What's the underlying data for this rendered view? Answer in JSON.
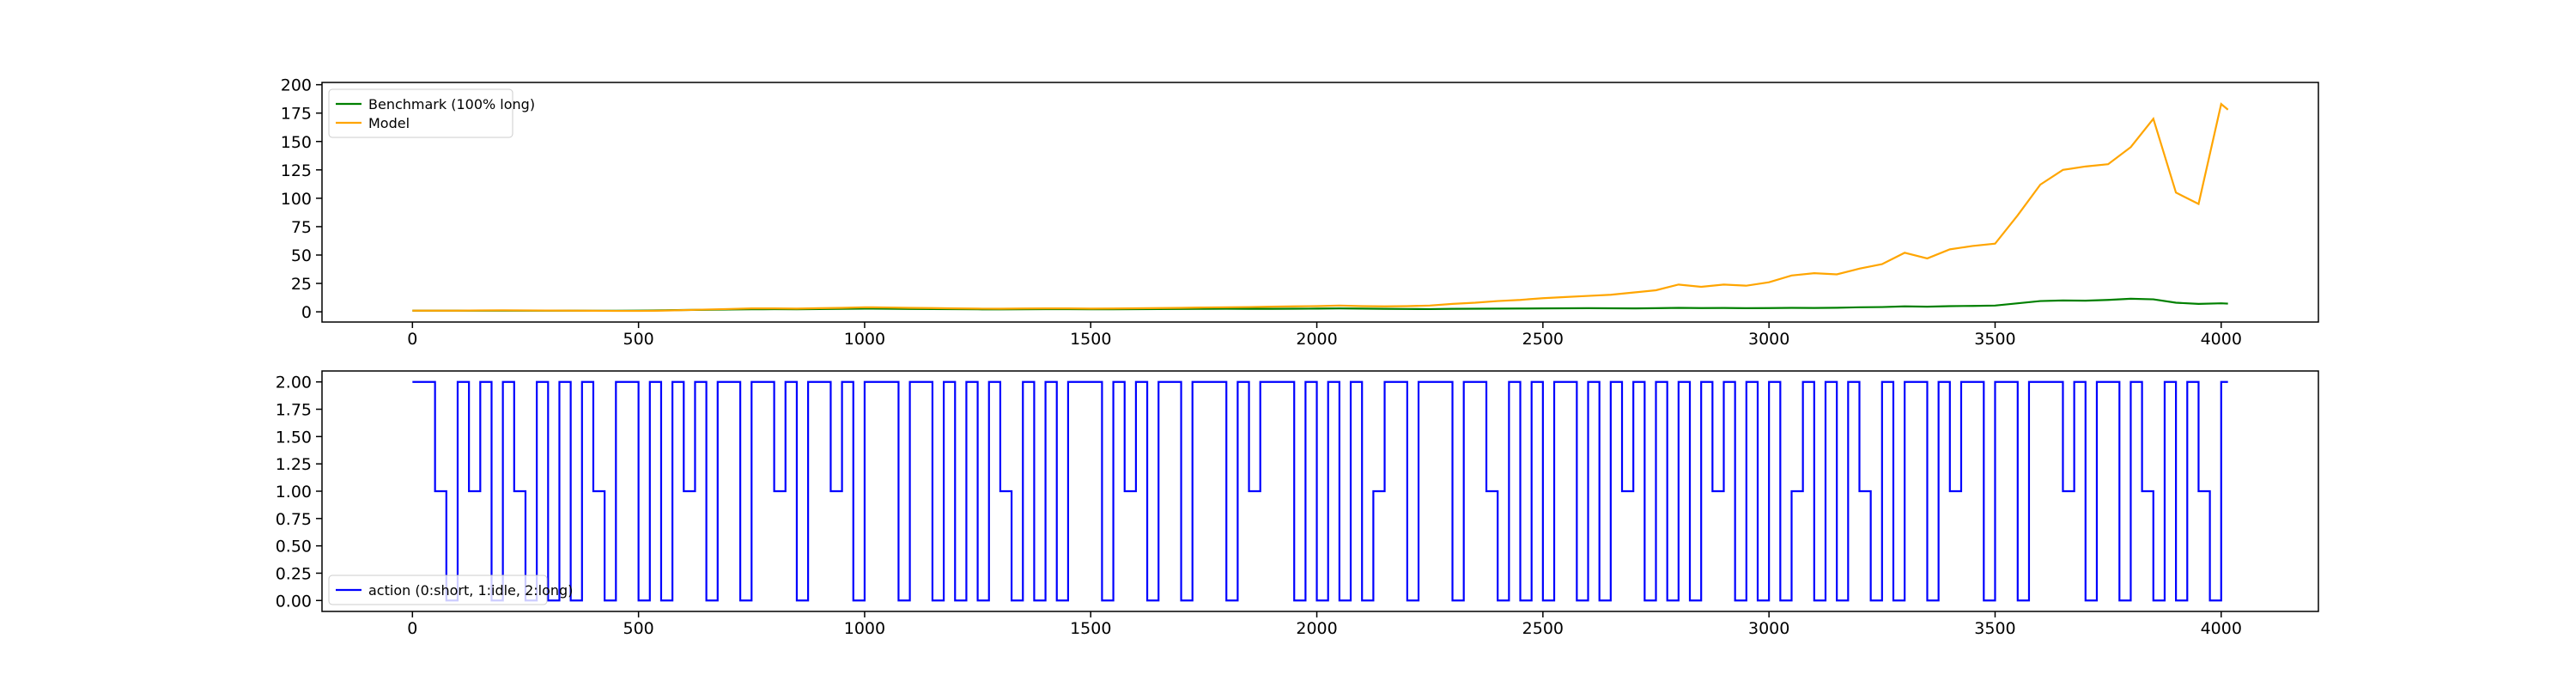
{
  "chart_data": [
    {
      "type": "line",
      "x": [
        0,
        50,
        100,
        150,
        200,
        250,
        300,
        350,
        400,
        450,
        500,
        550,
        600,
        650,
        700,
        750,
        800,
        850,
        900,
        950,
        1000,
        1050,
        1100,
        1150,
        1200,
        1250,
        1300,
        1350,
        1400,
        1450,
        1500,
        1550,
        1600,
        1650,
        1700,
        1750,
        1800,
        1850,
        1900,
        1950,
        2000,
        2050,
        2100,
        2150,
        2200,
        2250,
        2300,
        2350,
        2400,
        2450,
        2500,
        2550,
        2600,
        2650,
        2700,
        2750,
        2800,
        2850,
        2900,
        2950,
        3000,
        3050,
        3100,
        3150,
        3200,
        3250,
        3300,
        3350,
        3400,
        3450,
        3500,
        3550,
        3600,
        3650,
        3700,
        3750,
        3800,
        3850,
        3900,
        3950,
        4000,
        4015
      ],
      "series": [
        {
          "name": "Benchmark (100% long)",
          "color": "#008000",
          "values": [
            1,
            1,
            1,
            1,
            1,
            1,
            1,
            1,
            0.9,
            0.9,
            1,
            1.3,
            1.6,
            1.8,
            2,
            2.2,
            2.3,
            2.2,
            2.4,
            2.6,
            2.8,
            2.7,
            2.5,
            2.4,
            2.3,
            2.2,
            2.1,
            2.2,
            2.3,
            2.3,
            2.2,
            2.2,
            2.3,
            2.4,
            2.5,
            2.6,
            2.7,
            2.6,
            2.6,
            2.7,
            2.8,
            3,
            2.8,
            2.6,
            2.5,
            2.4,
            2.6,
            2.7,
            2.8,
            2.9,
            3,
            3.1,
            3.2,
            3.1,
            3,
            3.2,
            3.5,
            3.3,
            3.4,
            3.2,
            3.3,
            3.5,
            3.4,
            3.6,
            4,
            4.2,
            4.8,
            4.5,
            5,
            5.2,
            5.5,
            7.5,
            9.5,
            10,
            9.8,
            10.5,
            11.5,
            11,
            8,
            7,
            7.5,
            7.2
          ]
        },
        {
          "name": "Model",
          "color": "#ffa500",
          "values": [
            1,
            1,
            1,
            1.2,
            1.3,
            1.2,
            1.1,
            1,
            0.9,
            0.8,
            0.8,
            1,
            1.5,
            2,
            2.5,
            3,
            3,
            2.8,
            3.2,
            3.5,
            4,
            3.8,
            3.5,
            3.3,
            3,
            2.8,
            2.7,
            2.9,
            3,
            3,
            2.8,
            2.9,
            3.1,
            3.3,
            3.5,
            3.8,
            4,
            4.2,
            4.5,
            4.8,
            5,
            5.5,
            5,
            4.8,
            5,
            5.5,
            7,
            8,
            9.5,
            10.5,
            12,
            13,
            14,
            15,
            17,
            19,
            24,
            22,
            24,
            23,
            26,
            32,
            34,
            33,
            38,
            42,
            52,
            47,
            55,
            58,
            60,
            85,
            112,
            125,
            128,
            130,
            145,
            170,
            105,
            95,
            183,
            178
          ]
        }
      ],
      "xlim": [
        -200,
        4215
      ],
      "xticks": [
        0,
        500,
        1000,
        1500,
        2000,
        2500,
        3000,
        3500,
        4000
      ],
      "ylim": [
        -9,
        202
      ],
      "yticks": [
        0,
        25,
        50,
        75,
        100,
        125,
        150,
        175,
        200
      ],
      "legend": "upper left"
    },
    {
      "type": "line",
      "drawstyle": "steps-post",
      "x": [
        0,
        25,
        50,
        75,
        100,
        125,
        150,
        175,
        200,
        225,
        250,
        275,
        300,
        325,
        350,
        375,
        400,
        425,
        450,
        475,
        500,
        525,
        550,
        575,
        600,
        625,
        650,
        675,
        700,
        725,
        750,
        775,
        800,
        825,
        850,
        875,
        900,
        925,
        950,
        975,
        1000,
        1025,
        1050,
        1075,
        1100,
        1125,
        1150,
        1175,
        1200,
        1225,
        1250,
        1275,
        1300,
        1325,
        1350,
        1375,
        1400,
        1425,
        1450,
        1475,
        1500,
        1525,
        1550,
        1575,
        1600,
        1625,
        1650,
        1675,
        1700,
        1725,
        1750,
        1775,
        1800,
        1825,
        1850,
        1875,
        1900,
        1925,
        1950,
        1975,
        2000,
        2025,
        2050,
        2075,
        2100,
        2125,
        2150,
        2175,
        2200,
        2225,
        2250,
        2275,
        2300,
        2325,
        2350,
        2375,
        2400,
        2425,
        2450,
        2475,
        2500,
        2525,
        2550,
        2575,
        2600,
        2625,
        2650,
        2675,
        2700,
        2725,
        2750,
        2775,
        2800,
        2825,
        2850,
        2875,
        2900,
        2925,
        2950,
        2975,
        3000,
        3025,
        3050,
        3075,
        3100,
        3125,
        3150,
        3175,
        3200,
        3225,
        3250,
        3275,
        3300,
        3325,
        3350,
        3375,
        3400,
        3425,
        3450,
        3475,
        3500,
        3525,
        3550,
        3575,
        3600,
        3625,
        3650,
        3675,
        3700,
        3725,
        3750,
        3775,
        3800,
        3825,
        3850,
        3875,
        3900,
        3925,
        3950,
        3975,
        4000,
        4015
      ],
      "series": [
        {
          "name": "action (0:short, 1:idle, 2:long)",
          "color": "#0000ff",
          "values": [
            2,
            2,
            1,
            0,
            2,
            1,
            2,
            0,
            2,
            1,
            0,
            2,
            0,
            2,
            0,
            2,
            1,
            0,
            2,
            2,
            0,
            2,
            0,
            2,
            1,
            2,
            0,
            2,
            2,
            0,
            2,
            2,
            1,
            2,
            0,
            2,
            2,
            1,
            2,
            0,
            2,
            2,
            2,
            0,
            2,
            2,
            0,
            2,
            0,
            2,
            0,
            2,
            1,
            0,
            2,
            0,
            2,
            0,
            2,
            2,
            2,
            0,
            2,
            1,
            2,
            0,
            2,
            2,
            0,
            2,
            2,
            2,
            0,
            2,
            1,
            2,
            2,
            2,
            0,
            2,
            0,
            2,
            0,
            2,
            0,
            1,
            2,
            2,
            0,
            2,
            2,
            2,
            0,
            2,
            2,
            1,
            0,
            2,
            0,
            2,
            0,
            2,
            2,
            0,
            2,
            0,
            2,
            1,
            2,
            0,
            2,
            0,
            2,
            0,
            2,
            1,
            2,
            0,
            2,
            0,
            2,
            0,
            1,
            2,
            0,
            2,
            0,
            2,
            1,
            0,
            2,
            0,
            2,
            2,
            0,
            2,
            1,
            2,
            2,
            0,
            2,
            2,
            0,
            2,
            2,
            2,
            1,
            2,
            0,
            2,
            2,
            0,
            2,
            1,
            0,
            2,
            0,
            2,
            1,
            0,
            2,
            2
          ]
        }
      ],
      "xlim": [
        -200,
        4215
      ],
      "xticks": [
        0,
        500,
        1000,
        1500,
        2000,
        2500,
        3000,
        3500,
        4000
      ],
      "ylim": [
        -0.1,
        2.1
      ],
      "yticks": [
        {
          "value": 0,
          "label": "0.00"
        },
        {
          "value": 0.25,
          "label": "0.25"
        },
        {
          "value": 0.5,
          "label": "0.50"
        },
        {
          "value": 0.75,
          "label": "0.75"
        },
        {
          "value": 1,
          "label": "1.00"
        },
        {
          "value": 1.25,
          "label": "1.25"
        },
        {
          "value": 1.5,
          "label": "1.50"
        },
        {
          "value": 1.75,
          "label": "1.75"
        },
        {
          "value": 2,
          "label": "2.00"
        }
      ],
      "legend": "lower left"
    }
  ]
}
